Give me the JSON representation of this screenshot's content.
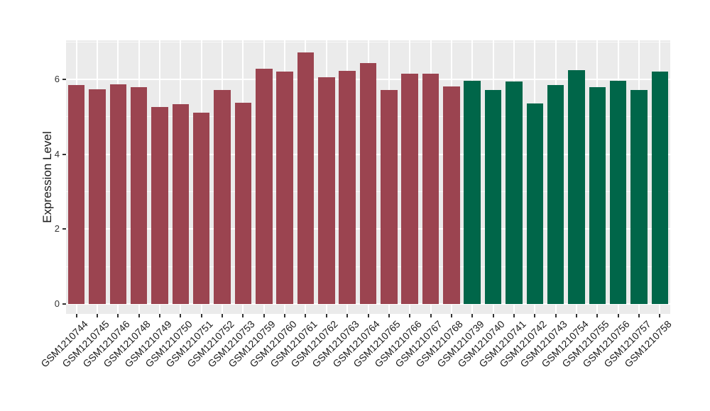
{
  "page": {
    "background_color": "#FFFFFF"
  },
  "chart_data": {
    "type": "bar",
    "title": "",
    "xlabel": "",
    "ylabel": "Expression Level",
    "ylim": [
      0,
      7.05
    ],
    "yticks": [
      0,
      2,
      4,
      6
    ],
    "minor_gridlines": [
      1,
      3,
      5,
      7
    ],
    "grid": true,
    "legend_position": "none",
    "panel_background": "#EBEBEB",
    "gridline_color": "#FFFFFF",
    "axis_text_color": "#1A1A1A",
    "tick_mark_color": "#333333",
    "categories": [
      "GSM1210744",
      "GSM1210745",
      "GSM1210746",
      "GSM1210748",
      "GSM1210749",
      "GSM1210750",
      "GSM1210751",
      "GSM1210752",
      "GSM1210753",
      "GSM1210759",
      "GSM1210760",
      "GSM1210761",
      "GSM1210762",
      "GSM1210763",
      "GSM1210764",
      "GSM1210765",
      "GSM1210766",
      "GSM1210767",
      "GSM1210768",
      "GSM1210739",
      "GSM1210740",
      "GSM1210741",
      "GSM1210742",
      "GSM1210743",
      "GSM1210754",
      "GSM1210755",
      "GSM1210756",
      "GSM1210757",
      "GSM1210758"
    ],
    "values": [
      5.84,
      5.73,
      5.86,
      5.8,
      5.27,
      5.34,
      5.12,
      5.71,
      5.37,
      6.28,
      6.21,
      6.72,
      6.05,
      6.23,
      6.44,
      5.71,
      6.15,
      6.15,
      5.81,
      5.96,
      5.72,
      5.94,
      5.36,
      5.84,
      6.24,
      5.79,
      5.96,
      5.71,
      6.2
    ],
    "bar_groups": [
      0,
      0,
      0,
      0,
      0,
      0,
      0,
      0,
      0,
      0,
      0,
      0,
      0,
      0,
      0,
      0,
      0,
      0,
      0,
      1,
      1,
      1,
      1,
      1,
      1,
      1,
      1,
      1,
      1
    ],
    "group_colors": [
      "#9B4450",
      "#006649"
    ]
  }
}
